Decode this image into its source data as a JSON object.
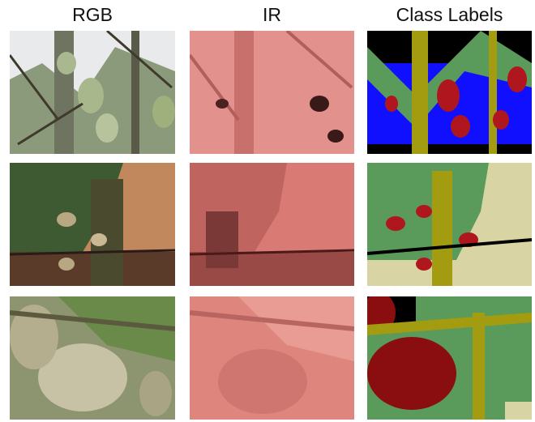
{
  "headers": {
    "rgb": "RGB",
    "ir": "IR",
    "labels": "Class Labels"
  },
  "rows": [
    {
      "name": "row-1"
    },
    {
      "name": "row-2"
    },
    {
      "name": "row-3"
    }
  ],
  "colors": {
    "class_fruit": "#b0161e",
    "class_leaf": "#5a9a5a",
    "class_branch": "#a39c10",
    "class_sky": "#1010ff",
    "class_ground": "#d9d4a4",
    "class_background": "#000000",
    "ir_base": "#d97a74"
  }
}
